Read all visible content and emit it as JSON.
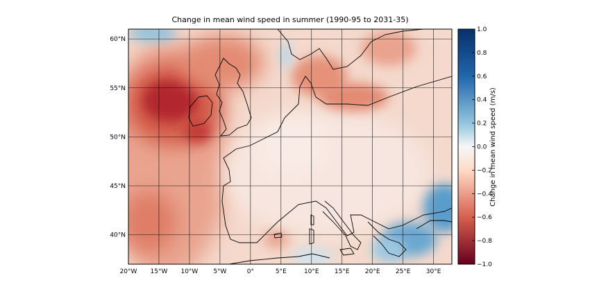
{
  "title": "Change in mean wind speed in summer (1990-95 to 2031-35)",
  "map": {
    "lon_range": [
      -20,
      33
    ],
    "lat_range": [
      37,
      61
    ],
    "lon_ticks": [
      {
        "value": -20,
        "label": "20°W"
      },
      {
        "value": -15,
        "label": "15°W"
      },
      {
        "value": -10,
        "label": "10°W"
      },
      {
        "value": -5,
        "label": "5°W"
      },
      {
        "value": 0,
        "label": "0°"
      },
      {
        "value": 5,
        "label": "5°E"
      },
      {
        "value": 10,
        "label": "10°E"
      },
      {
        "value": 15,
        "label": "15°E"
      },
      {
        "value": 20,
        "label": "20°E"
      },
      {
        "value": 25,
        "label": "25°E"
      },
      {
        "value": 30,
        "label": "30°E"
      }
    ],
    "lat_ticks": [
      {
        "value": 40,
        "label": "40°N"
      },
      {
        "value": 45,
        "label": "45°N"
      },
      {
        "value": 50,
        "label": "50°N"
      },
      {
        "value": 55,
        "label": "55°N"
      },
      {
        "value": 60,
        "label": "60°N"
      }
    ],
    "grid": true
  },
  "colorbar": {
    "label": "Change in mean wind speed (m/s)",
    "range": [
      -1.0,
      1.0
    ],
    "ticks": [
      "1.0",
      "0.8",
      "0.6",
      "0.4",
      "0.2",
      "0.0",
      "−0.2",
      "−0.4",
      "−0.6",
      "−0.8",
      "−1.0"
    ],
    "colormap": "RdBu",
    "colors": {
      "high": "#08306b",
      "mid_high": "#4393c3",
      "zero": "#f7f7f7",
      "mid_low": "#d6604d",
      "low": "#67001f"
    }
  }
}
